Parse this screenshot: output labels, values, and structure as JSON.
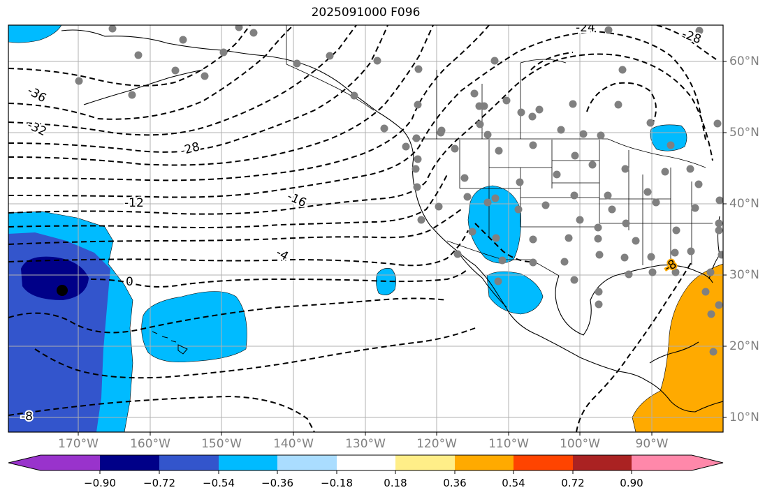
{
  "title": "2025091000 F096",
  "lon_labels": [
    "170°W",
    "160°W",
    "150°W",
    "140°W",
    "130°W",
    "120°W",
    "110°W",
    "100°W",
    "90°W"
  ],
  "lat_labels": [
    "60°N",
    "50°N",
    "40°N",
    "30°N",
    "20°N",
    "10°N"
  ],
  "contour_labels": [
    "-36",
    "-32",
    "-28",
    "-24",
    "-28",
    "-12",
    "-16",
    "-4",
    "0",
    "-8",
    "-8"
  ],
  "colorbar": {
    "ticks": [
      "−0.90",
      "−0.72",
      "−0.54",
      "−0.36",
      "−0.18",
      "0.18",
      "0.36",
      "0.54",
      "0.72",
      "0.90"
    ],
    "colors": [
      "#9933cc",
      "#000088",
      "#3355cc",
      "#00bbff",
      "#aaddff",
      "#ffffff",
      "#ffee88",
      "#ffaa00",
      "#ff4400",
      "#aa2222",
      "#ff88aa"
    ]
  },
  "colors": {
    "neg_light": "#00bbff",
    "neg_mid": "#3355cc",
    "neg_dark": "#000088",
    "pos": "#ffaa00",
    "station": "#808080",
    "grid": "#b0b0b0"
  }
}
